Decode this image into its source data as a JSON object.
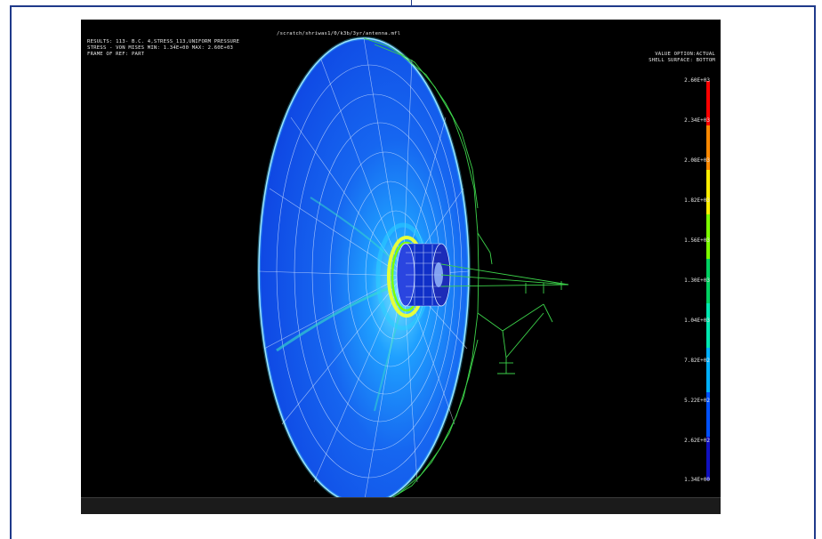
{
  "window": {
    "file_path": "/scratch/shriwas1/0/k3b/3yr/antenna.mfl"
  },
  "header": {
    "results_line": "RESULTS: 113- B.C. 4,STRESS_113,UNIFORM PRESSURE",
    "stress_line": "STRESS - VON MISES MIN: 1.34E+00 MAX: 2.60E+03",
    "frame_line": "FRAME OF REF: PART",
    "value_option": "VALUE OPTION:ACTUAL",
    "shell_surface": "SHELL SURFACE: BOTTOM"
  },
  "legend": {
    "labels": [
      "2.60E+03",
      "2.34E+03",
      "2.08E+03",
      "1.82E+03",
      "1.56E+03",
      "1.30E+03",
      "1.04E+03",
      "7.82E+02",
      "5.22E+02",
      "2.62E+02",
      "1.34E+00"
    ],
    "colors": [
      "#ff0000",
      "#ff8800",
      "#ffee00",
      "#7dff00",
      "#00d060",
      "#00e8b0",
      "#00b0ff",
      "#0050ff",
      "#1010c0"
    ]
  },
  "model": {
    "dish_color": "#0f4be6",
    "mesh_color": "#d9e8ff",
    "support_color": "#3cd24a"
  }
}
